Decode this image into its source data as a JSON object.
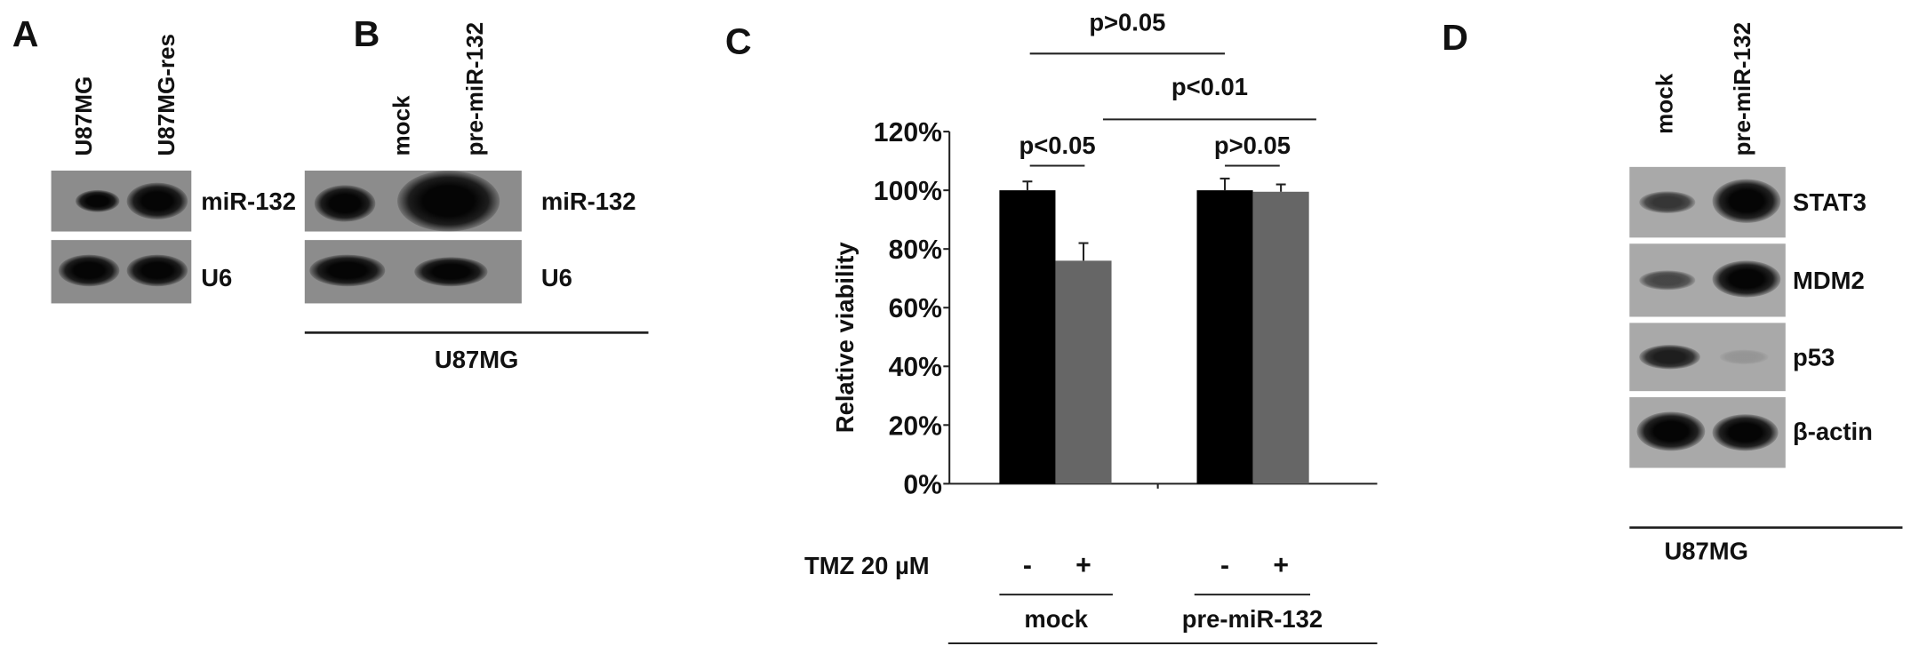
{
  "panels": {
    "A": {
      "label": "A",
      "lanes": [
        "U87MG",
        "U87MG-res"
      ],
      "rows": [
        "miR-132",
        "U6"
      ]
    },
    "B": {
      "label": "B",
      "lanes": [
        "mock",
        "pre-miR-132"
      ],
      "rows": [
        "miR-132",
        "U6"
      ],
      "cell_line": "U87MG"
    },
    "C": {
      "label": "C"
    },
    "D": {
      "label": "D",
      "lanes": [
        "mock",
        "pre-miR-132"
      ],
      "rows": [
        "STAT3",
        "MDM2",
        "p53",
        "β-actin"
      ],
      "cell_line": "U87MG"
    }
  },
  "chart_data": {
    "type": "bar",
    "ylabel": "Relative viability",
    "ylim": [
      0,
      1.2
    ],
    "yticks": [
      "0%",
      "20%",
      "40%",
      "60%",
      "80%",
      "100%",
      "120%"
    ],
    "treatment_label": "TMZ 20 µM",
    "categories": [
      "-",
      "+",
      "-",
      "+"
    ],
    "groups": [
      "mock",
      "pre-miR-132"
    ],
    "cell_line": "U87MG",
    "values": [
      1.0,
      0.76,
      1.0,
      0.995
    ],
    "errors": [
      0.03,
      0.06,
      0.04,
      0.025
    ],
    "colors": [
      "#000000",
      "#666666",
      "#000000",
      "#666666"
    ],
    "significance": [
      {
        "text": "p>0.05",
        "between": [
          0,
          2
        ]
      },
      {
        "text": "p<0.01",
        "between": [
          1,
          3
        ]
      },
      {
        "text": "p<0.05",
        "between": [
          0,
          1
        ]
      },
      {
        "text": "p>0.05",
        "between": [
          2,
          3
        ]
      }
    ]
  }
}
